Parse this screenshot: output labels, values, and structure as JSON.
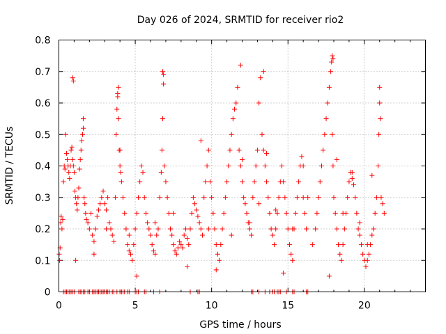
{
  "chart_data": {
    "type": "scatter",
    "title": "Day 026 of 2024, SRMTID for receiver rio2",
    "xlabel": "GPS time / hours",
    "ylabel": "SRMTID / TECUs",
    "xlim": [
      0,
      24
    ],
    "ylim": [
      0,
      0.8
    ],
    "x_ticks": [
      0,
      5,
      10,
      15,
      20
    ],
    "x_tick_labels": [
      "0",
      "5",
      "10",
      "15",
      "20"
    ],
    "y_ticks": [
      0,
      0.1,
      0.2,
      0.3,
      0.4,
      0.5,
      0.6,
      0.7,
      0.8
    ],
    "y_tick_labels": [
      "0",
      "0.1",
      "0.2",
      "0.3",
      "0.4",
      "0.5",
      "0.6",
      "0.7",
      "0.8"
    ],
    "grid": true,
    "marker": "+",
    "marker_color": "#ff0000",
    "series": [
      {
        "name": "SRMTID",
        "x": [
          0.02,
          0.05,
          0.08,
          0.12,
          0.15,
          0.2,
          0.25,
          0.3,
          0.35,
          0.4,
          0.45,
          0.5,
          0.55,
          0.6,
          0.65,
          0.7,
          0.75,
          0.8,
          0.85,
          0.9,
          0.95,
          1.0,
          1.05,
          1.1,
          1.15,
          1.2,
          1.25,
          1.3,
          1.35,
          1.4,
          1.45,
          1.5,
          1.55,
          1.6,
          1.65,
          1.7,
          1.75,
          1.8,
          1.9,
          2.0,
          2.1,
          2.2,
          2.3,
          2.4,
          2.5,
          2.6,
          2.7,
          2.8,
          2.9,
          3.0,
          3.1,
          3.2,
          3.3,
          3.4,
          3.5,
          3.6,
          3.7,
          3.75,
          3.8,
          3.85,
          3.9,
          3.95,
          4.0,
          4.05,
          4.1,
          4.2,
          4.3,
          4.4,
          4.5,
          4.6,
          4.7,
          4.8,
          4.9,
          5.0,
          5.1,
          5.2,
          5.3,
          5.4,
          5.5,
          5.6,
          5.7,
          5.8,
          5.9,
          6.0,
          6.1,
          6.2,
          6.3,
          6.4,
          6.5,
          6.6,
          6.7,
          6.75,
          6.8,
          6.85,
          6.9,
          7.0,
          7.1,
          7.2,
          7.3,
          7.4,
          7.5,
          7.6,
          7.7,
          7.8,
          7.9,
          8.0,
          8.1,
          8.2,
          8.3,
          8.4,
          8.5,
          8.6,
          8.7,
          8.8,
          8.9,
          9.0,
          9.1,
          9.2,
          9.3,
          9.4,
          9.5,
          9.6,
          9.7,
          9.8,
          9.9,
          10.0,
          10.1,
          10.2,
          10.3,
          10.4,
          10.5,
          10.6,
          10.7,
          10.8,
          10.9,
          11.0,
          11.1,
          11.2,
          11.3,
          11.4,
          11.5,
          11.6,
          11.7,
          11.8,
          11.9,
          12.0,
          12.1,
          12.2,
          12.3,
          12.4,
          12.5,
          12.6,
          12.7,
          12.8,
          12.9,
          13.0,
          13.1,
          13.2,
          13.3,
          13.4,
          13.5,
          13.6,
          13.7,
          13.8,
          13.9,
          14.0,
          14.1,
          14.2,
          14.3,
          14.4,
          14.5,
          14.6,
          14.7,
          14.8,
          14.9,
          15.0,
          15.1,
          15.2,
          15.3,
          15.4,
          15.5,
          15.6,
          15.7,
          15.8,
          15.9,
          16.0,
          16.1,
          16.2,
          16.6,
          16.8,
          16.9,
          17.0,
          17.1,
          17.2,
          17.3,
          17.4,
          17.5,
          17.6,
          17.7,
          17.8,
          17.85,
          17.9,
          17.95,
          18.0,
          18.1,
          18.2,
          18.3,
          18.4,
          18.5,
          18.6,
          18.7,
          18.8,
          18.9,
          19.0,
          19.1,
          19.2,
          19.3,
          19.4,
          19.5,
          19.6,
          19.7,
          19.8,
          19.9,
          20.0,
          20.1,
          20.2,
          20.3,
          20.4,
          20.5,
          20.6,
          20.7,
          20.8,
          20.9,
          20.95,
          21.0,
          21.05,
          21.1,
          21.2,
          21.3,
          0.9,
          0.95,
          3.85,
          3.9,
          6.8,
          6.85,
          11.9,
          13.4,
          17.9,
          17.95,
          21.0,
          1.6,
          4.0,
          9.3,
          12.0,
          13.6,
          16.0,
          18.2,
          19.2,
          20.5,
          5.1,
          8.4,
          10.3,
          14.7,
          17.7,
          1.1,
          2.3,
          3.1,
          4.6,
          6.3,
          7.5,
          9.8,
          11.3,
          12.5,
          13.1,
          14.2,
          15.3,
          16.3,
          18.6,
          19.7,
          20.2
        ],
        "y": [
          0.12,
          0.1,
          0.14,
          0.22,
          0.24,
          0.2,
          0.23,
          0.35,
          0.4,
          0.39,
          0.5,
          0.44,
          0.42,
          0.4,
          0.38,
          0.36,
          0.4,
          0.45,
          0.46,
          0.42,
          0.4,
          0.38,
          0.32,
          0.3,
          0.28,
          0.26,
          0.3,
          0.33,
          0.39,
          0.42,
          0.45,
          0.48,
          0.5,
          0.52,
          0.3,
          0.28,
          0.25,
          0.23,
          0.22,
          0.2,
          0.25,
          0.18,
          0.16,
          0.2,
          0.24,
          0.26,
          0.28,
          0.3,
          0.32,
          0.28,
          0.26,
          0.3,
          0.22,
          0.2,
          0.18,
          0.16,
          0.3,
          0.5,
          0.58,
          0.62,
          0.55,
          0.45,
          0.4,
          0.38,
          0.35,
          0.3,
          0.25,
          0.2,
          0.15,
          0.13,
          0.12,
          0.1,
          0.15,
          0.2,
          0.25,
          0.3,
          0.35,
          0.4,
          0.38,
          0.3,
          0.25,
          0.22,
          0.2,
          0.18,
          0.15,
          0.13,
          0.12,
          0.18,
          0.2,
          0.3,
          0.38,
          0.45,
          0.55,
          0.66,
          0.4,
          0.35,
          0.3,
          0.25,
          0.2,
          0.18,
          0.15,
          0.13,
          0.12,
          0.14,
          0.16,
          0.15,
          0.14,
          0.18,
          0.2,
          0.17,
          0.15,
          0.2,
          0.25,
          0.3,
          0.28,
          0.26,
          0.24,
          0.22,
          0.2,
          0.18,
          0.3,
          0.35,
          0.4,
          0.45,
          0.35,
          0.3,
          0.25,
          0.2,
          0.15,
          0.12,
          0.1,
          0.15,
          0.2,
          0.25,
          0.3,
          0.35,
          0.4,
          0.45,
          0.5,
          0.55,
          0.58,
          0.6,
          0.65,
          0.45,
          0.4,
          0.35,
          0.3,
          0.28,
          0.25,
          0.22,
          0.2,
          0.18,
          0.3,
          0.35,
          0.4,
          0.45,
          0.6,
          0.68,
          0.5,
          0.45,
          0.4,
          0.35,
          0.3,
          0.25,
          0.2,
          0.18,
          0.15,
          0.2,
          0.25,
          0.3,
          0.35,
          0.4,
          0.35,
          0.3,
          0.25,
          0.2,
          0.15,
          0.12,
          0.1,
          0.2,
          0.25,
          0.3,
          0.35,
          0.4,
          0.43,
          0.3,
          0.25,
          0.2,
          0.15,
          0.2,
          0.25,
          0.3,
          0.35,
          0.4,
          0.45,
          0.5,
          0.55,
          0.6,
          0.65,
          0.7,
          0.73,
          0.5,
          0.4,
          0.3,
          0.25,
          0.2,
          0.15,
          0.12,
          0.1,
          0.15,
          0.2,
          0.25,
          0.3,
          0.35,
          0.38,
          0.36,
          0.34,
          0.3,
          0.25,
          0.2,
          0.18,
          0.15,
          0.12,
          0.1,
          0.08,
          0.1,
          0.12,
          0.15,
          0.18,
          0.2,
          0.25,
          0.3,
          0.4,
          0.5,
          0.6,
          0.55,
          0.3,
          0.28,
          0.25,
          0.68,
          0.67,
          0.63,
          0.65,
          0.7,
          0.69,
          0.72,
          0.7,
          0.75,
          0.74,
          0.65,
          0.55,
          0.45,
          0.48,
          0.42,
          0.44,
          0.4,
          0.42,
          0.38,
          0.37,
          0.05,
          0.08,
          0.07,
          0.06,
          0.05,
          0.1,
          0.12,
          0.2,
          0.18,
          0.22,
          0.25,
          0.2,
          0.18,
          0.22,
          0.28,
          0.26,
          0.2,
          0.3,
          0.25,
          0.22,
          0.15
        ]
      }
    ],
    "zero_x": [
      0.3,
      0.4,
      0.5,
      0.6,
      0.7,
      0.8,
      0.9,
      1.0,
      1.3,
      1.4,
      1.5,
      1.6,
      1.7,
      1.9,
      2.0,
      2.2,
      2.3,
      2.4,
      2.5,
      2.6,
      2.7,
      2.8,
      2.9,
      3.0,
      3.1,
      3.2,
      3.3,
      3.5,
      3.6,
      3.8,
      4.0,
      4.1,
      4.2,
      4.3,
      4.5,
      4.6,
      5.0,
      5.1,
      5.2,
      5.6,
      5.7,
      6.2,
      6.6,
      8.6,
      9.1,
      9.2,
      12.6,
      12.7,
      13.1,
      13.5,
      13.8,
      14.0,
      14.1,
      14.3,
      14.4,
      14.5,
      14.9,
      15.3,
      15.4,
      16.2,
      16.3
    ],
    "zero_y": 0
  }
}
